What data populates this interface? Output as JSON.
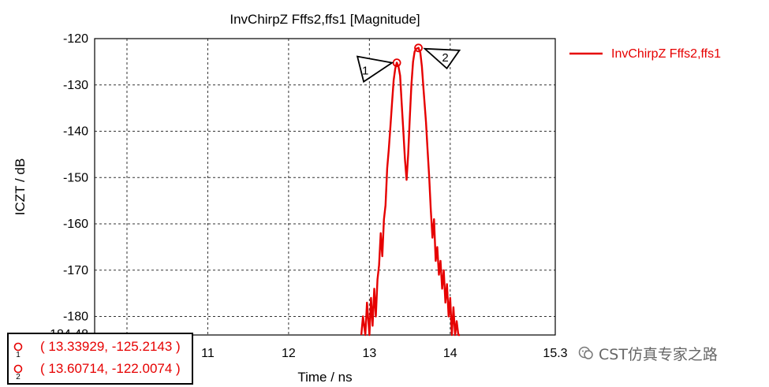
{
  "chart_data": {
    "type": "line",
    "title": "InvChirpZ Fffs2,ffs1 [Magnitude]",
    "xlabel": "Time / ns",
    "ylabel": "ICZT / dB",
    "xlim": [
      9.6,
      15.3
    ],
    "ylim": [
      -184,
      -120
    ],
    "x_ticks": [
      "11",
      "12",
      "13",
      "14",
      "15.3"
    ],
    "y_ticks": [
      "-120",
      "-130",
      "-140",
      "-150",
      "-160",
      "-170",
      "-180"
    ],
    "y_bottom_label": "-184.48",
    "grid": true,
    "legend_position": "top-right",
    "series": [
      {
        "name": "InvChirpZ Fffs2,ffs1",
        "color": "#e60000",
        "x": [
          12.9,
          12.92,
          12.95,
          12.97,
          13.0,
          13.02,
          13.04,
          13.06,
          13.08,
          13.1,
          13.12,
          13.14,
          13.16,
          13.18,
          13.2,
          13.22,
          13.24,
          13.26,
          13.28,
          13.3,
          13.32,
          13.339,
          13.36,
          13.38,
          13.4,
          13.42,
          13.44,
          13.46,
          13.48,
          13.5,
          13.52,
          13.54,
          13.56,
          13.58,
          13.607,
          13.63,
          13.65,
          13.67,
          13.7,
          13.72,
          13.74,
          13.76,
          13.78,
          13.8,
          13.82,
          13.84,
          13.86,
          13.88,
          13.9,
          13.92,
          13.94,
          13.96,
          13.98,
          14.0,
          14.02,
          14.04,
          14.06,
          14.08,
          14.1,
          14.12
        ],
        "y": [
          -184.5,
          -180,
          -184.5,
          -177,
          -184.5,
          -176,
          -182,
          -174,
          -180,
          -172,
          -169,
          -162,
          -167,
          -159,
          -156,
          -148,
          -144,
          -139,
          -134,
          -129,
          -126.5,
          -125.2,
          -126,
          -128,
          -134,
          -140,
          -146,
          -150.5,
          -145,
          -137,
          -130,
          -125,
          -122.8,
          -122.2,
          -122.0,
          -123,
          -126,
          -131,
          -138,
          -144,
          -150,
          -157,
          -163,
          -159,
          -168,
          -165,
          -171,
          -168,
          -174,
          -170,
          -177,
          -173,
          -180,
          -176,
          -184.5,
          -178,
          -184.5,
          -181,
          -184.5,
          -184.5
        ]
      }
    ],
    "markers": [
      {
        "label": "1",
        "x": 13.33929,
        "y": -125.2143,
        "readout": "( 13.33929, -125.2143 )"
      },
      {
        "label": "2",
        "x": 13.60714,
        "y": -122.0074,
        "readout": "( 13.60714, -122.0074 )"
      }
    ]
  },
  "watermark": {
    "text": "CST仿真专家之路",
    "icon": "wechat-icon"
  }
}
